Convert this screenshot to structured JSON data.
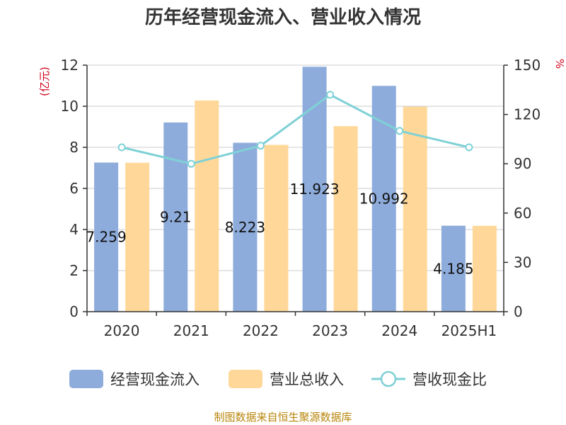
{
  "chart_data": {
    "type": "bar",
    "title": "历年经营现金流入、营业收入情况",
    "categories": [
      "2020",
      "2021",
      "2022",
      "2023",
      "2024",
      "2025H1"
    ],
    "y_left": {
      "unit": "(亿元)",
      "range": [
        0,
        12
      ],
      "ticks": [
        0,
        2,
        4,
        6,
        8,
        10,
        12
      ]
    },
    "y_right": {
      "unit": "%",
      "range": [
        0,
        150
      ],
      "ticks": [
        0,
        30,
        60,
        90,
        120,
        150
      ]
    },
    "grid": true,
    "legend_position": "bottom",
    "series": [
      {
        "name": "经营现金流入",
        "kind": "bar",
        "axis": "left",
        "color": "#8eacdb",
        "values": [
          7.259,
          9.21,
          8.223,
          11.923,
          10.992,
          4.185
        ],
        "labels": [
          "7.259",
          "9.21",
          "8.223",
          "11.923",
          "10.992",
          "4.185"
        ]
      },
      {
        "name": "营业总收入",
        "kind": "bar",
        "axis": "left",
        "color": "#ffd899",
        "values": [
          7.25,
          10.28,
          8.12,
          9.03,
          9.98,
          4.18
        ]
      },
      {
        "name": "营收现金比",
        "kind": "line",
        "axis": "right",
        "color": "#7fd1d6",
        "values": [
          100,
          90,
          101,
          132,
          110,
          100
        ]
      }
    ]
  },
  "source": "制图数据来自恒生聚源数据库"
}
